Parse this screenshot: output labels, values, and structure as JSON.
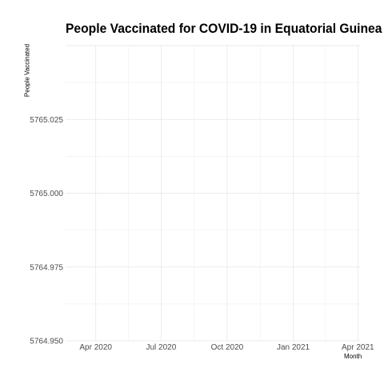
{
  "chart_data": {
    "type": "line",
    "title": "People Vaccinated for COVID-19 in Equatorial Guinea",
    "xlabel": "Month",
    "ylabel": "People Vaccinated",
    "x_ticks": [
      "Apr 2020",
      "Jul 2020",
      "Oct 2020",
      "Jan 2021",
      "Apr 2021"
    ],
    "y_ticks": [
      "5764.950",
      "5764.975",
      "5765.000",
      "5765.025"
    ],
    "ylim": [
      5764.95,
      5765.05
    ],
    "grid": true,
    "series": []
  }
}
